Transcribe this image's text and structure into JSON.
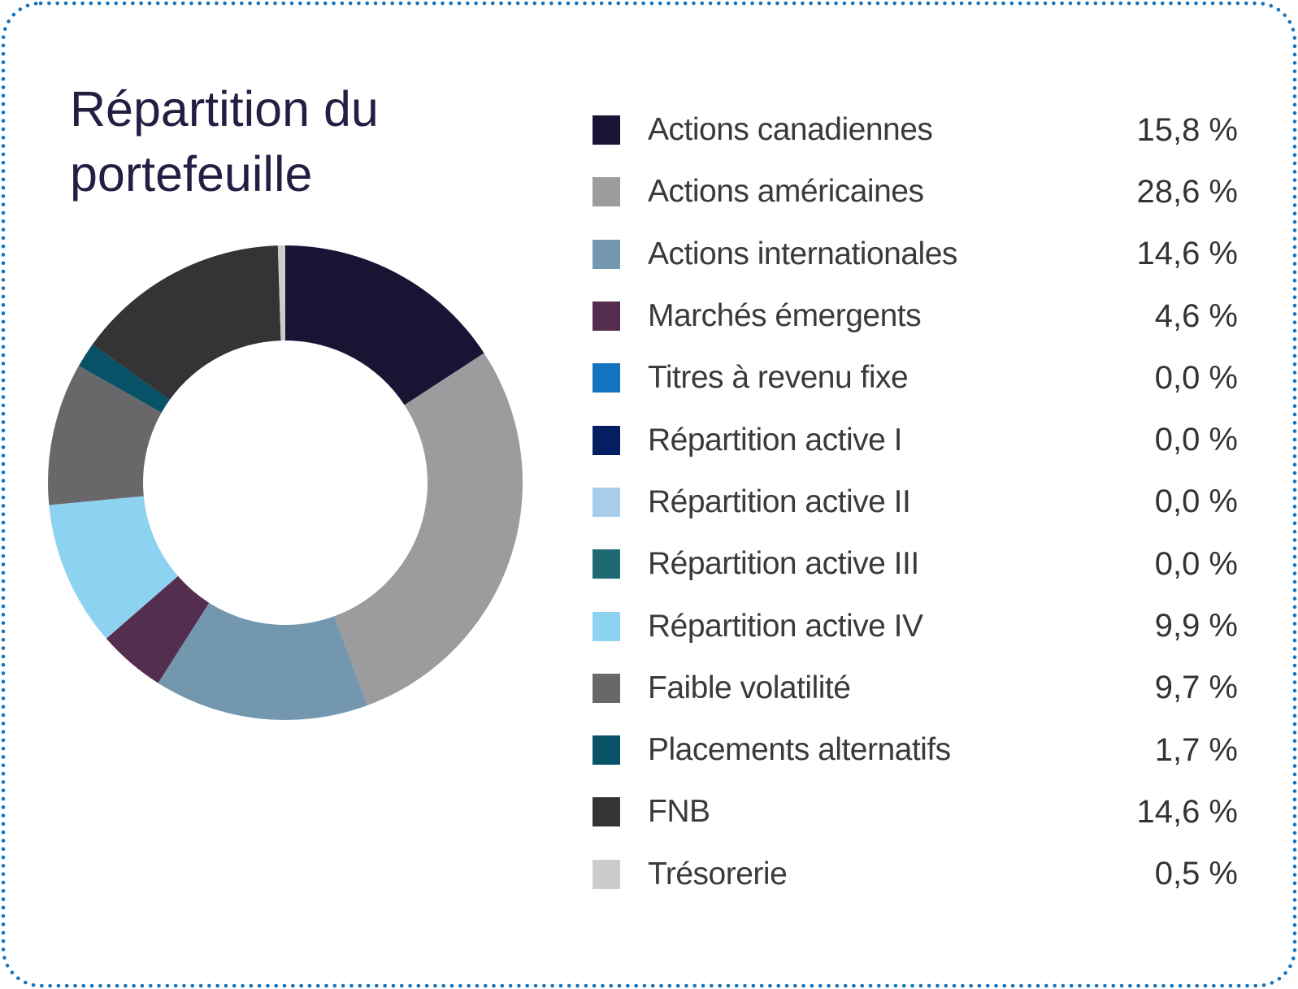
{
  "title": "Répartition du portefeuille",
  "title_color": "#221f43",
  "card": {
    "background": "#ffffff",
    "border_color": "#1473be",
    "border_style": "dotted"
  },
  "chart_data": {
    "type": "pie",
    "subtype": "donut",
    "title": "Répartition du portefeuille",
    "unit": "%",
    "start_angle": "top",
    "direction": "clockwise",
    "legend_position": "right",
    "segments": [
      {
        "label": "Actions canadiennes",
        "value": 15.8,
        "display": "15,8 %",
        "color": "#171434"
      },
      {
        "label": "Actions américaines",
        "value": 28.6,
        "display": "28,6 %",
        "color": "#9c9b9e"
      },
      {
        "label": "Actions internationales",
        "value": 14.6,
        "display": "14,6 %",
        "color": "#7297ae"
      },
      {
        "label": "Marchés émergents",
        "value": 4.6,
        "display": "4,6 %",
        "color": "#542e4e"
      },
      {
        "label": "Titres à revenu fixe",
        "value": 0.0,
        "display": "0,0 %",
        "color": "#1473be"
      },
      {
        "label": "Répartition active I",
        "value": 0.0,
        "display": "0,0 %",
        "color": "#041f61"
      },
      {
        "label": "Répartition active II",
        "value": 0.0,
        "display": "0,0 %",
        "color": "#a6cdeb"
      },
      {
        "label": "Répartition active III",
        "value": 0.0,
        "display": "0,0 %",
        "color": "#1f6a72"
      },
      {
        "label": "Répartition active IV",
        "value": 9.9,
        "display": "9,9 %",
        "color": "#8ed2f1"
      },
      {
        "label": "Faible volatilité",
        "value": 9.7,
        "display": "9,7 %",
        "color": "#68686a"
      },
      {
        "label": "Placements alternatifs",
        "value": 1.7,
        "display": "1,7 %",
        "color": "#075267"
      },
      {
        "label": "FNB",
        "value": 14.6,
        "display": "14,6 %",
        "color": "#343437"
      },
      {
        "label": "Trésorerie",
        "value": 0.5,
        "display": "0,5 %",
        "color": "#cccccd"
      }
    ]
  }
}
